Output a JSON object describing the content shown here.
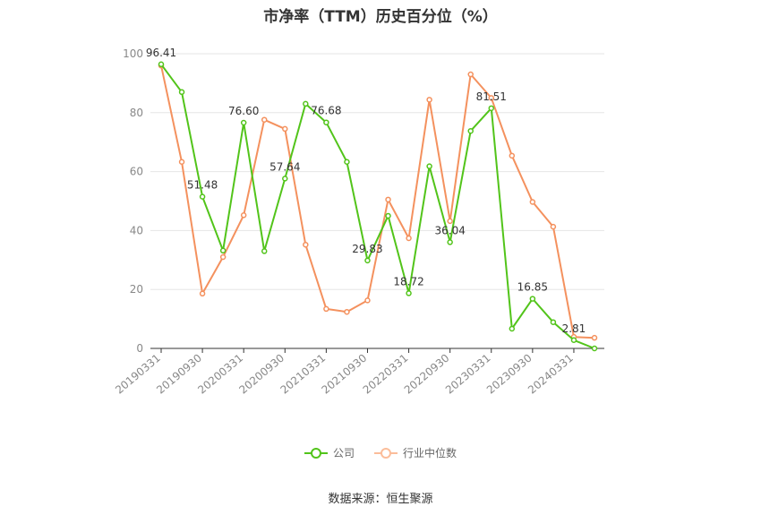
{
  "chart_data": {
    "type": "line",
    "title": "市净率（TTM）历史百分位（%）",
    "ylim": [
      0,
      100
    ],
    "yticks": [
      0,
      20,
      40,
      60,
      80,
      100
    ],
    "grid": true,
    "legend_position": "bottom",
    "x": [
      "20190331",
      "20190630",
      "20190930",
      "20191231",
      "20200331",
      "20200630",
      "20200930",
      "20201231",
      "20210331",
      "20210630",
      "20210930",
      "20211231",
      "20220331",
      "20220630",
      "20220930",
      "20221231",
      "20230331",
      "20230630",
      "20230930",
      "20231231",
      "20240331",
      "20240630"
    ],
    "x_tick_labels": [
      "20190331",
      "20190930",
      "20200331",
      "20200930",
      "20210331",
      "20210930",
      "20220331",
      "20220930",
      "20230331",
      "20230930",
      "20240331"
    ],
    "series": [
      {
        "name": "公司",
        "color": "#52c41a",
        "values": [
          96.41,
          87.0,
          51.48,
          33.2,
          76.6,
          33.0,
          57.64,
          83.0,
          76.68,
          63.3,
          29.83,
          45.0,
          18.72,
          61.8,
          36.04,
          73.8,
          81.51,
          6.7,
          16.85,
          8.9,
          2.81,
          0.0
        ],
        "labels": [
          "96.41",
          "",
          "51.48",
          "",
          "76.60",
          "",
          "57.64",
          "",
          "76.68",
          "",
          "29.83",
          "",
          "18.72",
          "",
          "36.04",
          "",
          "81.51",
          "",
          "16.85",
          "",
          "2.81",
          ""
        ]
      },
      {
        "name": "行业中位数",
        "color": "#f4915e",
        "values": [
          96.0,
          63.3,
          18.6,
          31.0,
          45.2,
          77.6,
          74.5,
          35.2,
          13.4,
          12.4,
          16.3,
          50.5,
          37.4,
          84.4,
          43.2,
          93.0,
          85.0,
          65.4,
          49.7,
          41.3,
          3.9,
          3.6
        ]
      }
    ]
  },
  "source": "数据来源：恒生聚源"
}
